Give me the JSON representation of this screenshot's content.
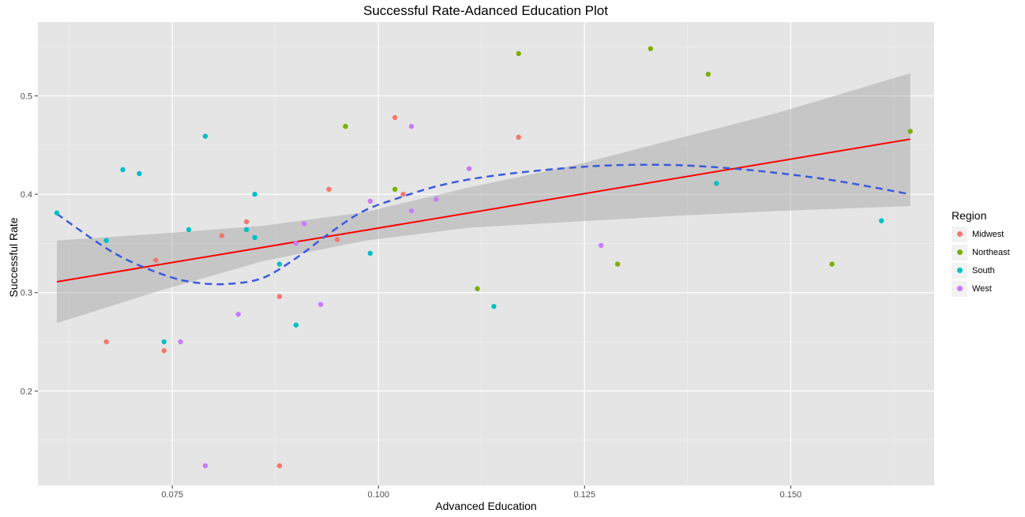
{
  "chart_data": {
    "type": "scatter",
    "title": "Successful Rate-Adanced Education Plot",
    "xlabel": "Advanced Education",
    "ylabel": "Successful Rate",
    "xlim": [
      0.0587,
      0.1674
    ],
    "ylim": [
      0.104,
      0.575
    ],
    "xticks": [
      0.075,
      0.1,
      0.125,
      0.15
    ],
    "xtick_labels": [
      "0.075",
      "0.100",
      "0.125",
      "0.150"
    ],
    "yticks": [
      0.2,
      0.3,
      0.4,
      0.5
    ],
    "ytick_labels": [
      "0.2",
      "0.3",
      "0.4",
      "0.5"
    ],
    "grid": true,
    "legend": {
      "title": "Region",
      "position": "right"
    },
    "series": [
      {
        "name": "Midwest",
        "color": "#F8766D",
        "points": [
          [
            0.067,
            0.25
          ],
          [
            0.073,
            0.333
          ],
          [
            0.074,
            0.241
          ],
          [
            0.081,
            0.358
          ],
          [
            0.084,
            0.372
          ],
          [
            0.088,
            0.296
          ],
          [
            0.088,
            0.124
          ],
          [
            0.094,
            0.405
          ],
          [
            0.095,
            0.354
          ],
          [
            0.102,
            0.478
          ],
          [
            0.103,
            0.4
          ],
          [
            0.117,
            0.458
          ]
        ]
      },
      {
        "name": "Northeast",
        "color": "#7CAE00",
        "points": [
          [
            0.096,
            0.469
          ],
          [
            0.102,
            0.405
          ],
          [
            0.112,
            0.304
          ],
          [
            0.117,
            0.543
          ],
          [
            0.129,
            0.329
          ],
          [
            0.133,
            0.548
          ],
          [
            0.14,
            0.522
          ],
          [
            0.155,
            0.329
          ],
          [
            0.1645,
            0.464
          ]
        ]
      },
      {
        "name": "South",
        "color": "#00BFC4",
        "points": [
          [
            0.061,
            0.381
          ],
          [
            0.067,
            0.353
          ],
          [
            0.069,
            0.425
          ],
          [
            0.071,
            0.421
          ],
          [
            0.074,
            0.25
          ],
          [
            0.077,
            0.364
          ],
          [
            0.079,
            0.459
          ],
          [
            0.084,
            0.364
          ],
          [
            0.085,
            0.4
          ],
          [
            0.085,
            0.356
          ],
          [
            0.088,
            0.329
          ],
          [
            0.09,
            0.267
          ],
          [
            0.099,
            0.34
          ],
          [
            0.114,
            0.286
          ],
          [
            0.141,
            0.411
          ],
          [
            0.161,
            0.373
          ]
        ]
      },
      {
        "name": "West",
        "color": "#C77CFF",
        "points": [
          [
            0.076,
            0.25
          ],
          [
            0.079,
            0.124
          ],
          [
            0.083,
            0.278
          ],
          [
            0.09,
            0.35
          ],
          [
            0.091,
            0.37
          ],
          [
            0.093,
            0.288
          ],
          [
            0.099,
            0.393
          ],
          [
            0.104,
            0.469
          ],
          [
            0.104,
            0.383
          ],
          [
            0.107,
            0.395
          ],
          [
            0.111,
            0.426
          ],
          [
            0.127,
            0.348
          ]
        ]
      }
    ],
    "linear_fit": {
      "color": "#FF0000",
      "x": [
        0.061,
        0.1645
      ],
      "y": [
        0.311,
        0.456
      ]
    },
    "confidence_band": {
      "color": "#999999",
      "x": [
        0.061,
        0.0735,
        0.086,
        0.0985,
        0.111,
        0.1235,
        0.136,
        0.1485,
        0.1645
      ],
      "upper": [
        0.353,
        0.36,
        0.368,
        0.382,
        0.407,
        0.429,
        0.456,
        0.483,
        0.523
      ],
      "lower": [
        0.269,
        0.302,
        0.332,
        0.353,
        0.366,
        0.372,
        0.378,
        0.383,
        0.388
      ]
    },
    "smooth_fit": {
      "color": "#3B5BDB",
      "style": "dashed",
      "x": [
        0.061,
        0.068,
        0.074,
        0.078,
        0.082,
        0.086,
        0.09,
        0.094,
        0.098,
        0.102,
        0.108,
        0.115,
        0.125,
        0.133,
        0.14,
        0.148,
        0.156,
        0.1645
      ],
      "y": [
        0.38,
        0.34,
        0.318,
        0.31,
        0.309,
        0.315,
        0.335,
        0.36,
        0.382,
        0.395,
        0.41,
        0.42,
        0.428,
        0.43,
        0.428,
        0.422,
        0.413,
        0.4
      ]
    }
  }
}
